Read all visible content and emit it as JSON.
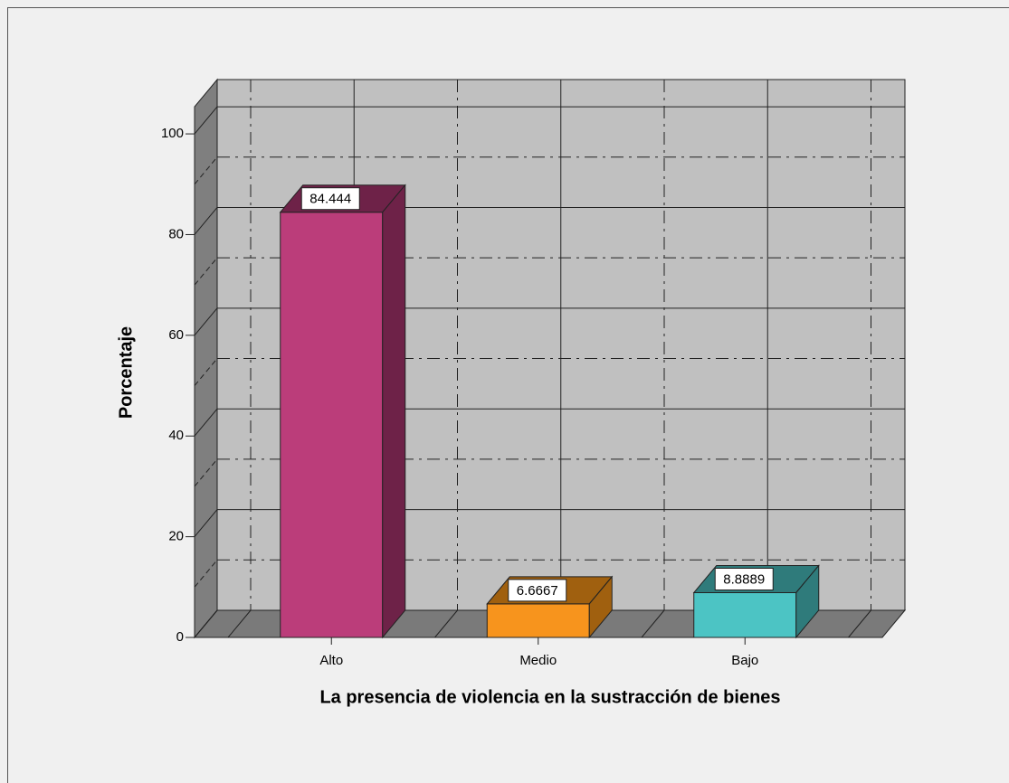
{
  "chart_data": {
    "type": "bar3d",
    "x_label": "La presencia de violencia en la sustracción de bienes",
    "y_label": "Porcentaje",
    "categories": [
      "Alto",
      "Medio",
      "Bajo"
    ],
    "values": [
      84.444,
      6.6667,
      8.8889
    ],
    "colors": [
      "#bb3d7a",
      "#f7941d",
      "#4cc4c4"
    ],
    "side_colors": [
      "#6e2248",
      "#a0600f",
      "#2f7b7b"
    ],
    "ylim": [
      0,
      105.4
    ],
    "yticks": [
      0,
      20,
      40,
      60,
      80,
      100
    ],
    "grid": true
  }
}
